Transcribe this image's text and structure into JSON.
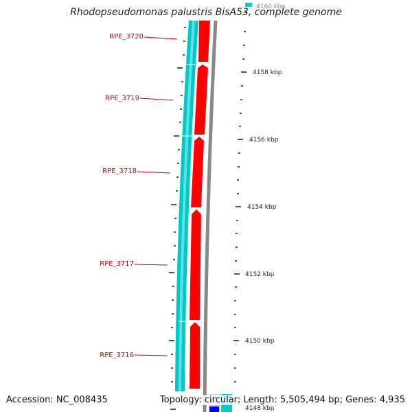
{
  "title": "Rhodopseudomonas palustris BisA53, complete genome",
  "accession_text": "Accession: NC_008435",
  "topology_text": "Topology: circular; Length: 5,505,494 bp; Genes: 4,935",
  "colors": {
    "plus_strand_gene": "#ff0000",
    "minus_strand_band": "#00cccc",
    "label": "#cc0000",
    "tick": "#1a7a1a",
    "backbone": "#888888"
  },
  "genes": [
    {
      "name": "RPE_3720"
    },
    {
      "name": "RPE_3719"
    },
    {
      "name": "RPE_3718"
    },
    {
      "name": "RPE_3717"
    },
    {
      "name": "RPE_3716"
    }
  ],
  "scale_labels": [
    "4160 kbp",
    "4158 kbp",
    "4156 kbp",
    "4154 kbp",
    "4152 kbp",
    "4150 kbp",
    "4148 kbp"
  ]
}
